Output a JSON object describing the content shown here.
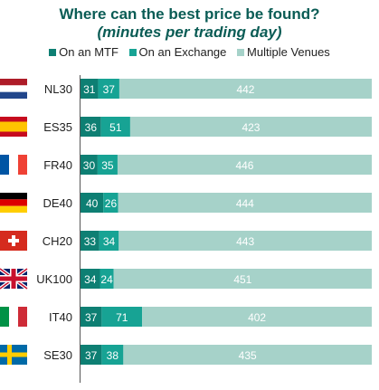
{
  "chart_data": {
    "type": "bar",
    "stacked": true,
    "orientation": "horizontal",
    "title": "Where can the best price be found?",
    "subtitle": "(minutes per trading day)",
    "legend_position": "top",
    "categories": [
      "NL30",
      "ES35",
      "FR40",
      "DE40",
      "CH20",
      "UK100",
      "IT40",
      "SE30"
    ],
    "flags": [
      "netherlands-flag",
      "spain-flag",
      "france-flag",
      "germany-flag",
      "switzerland-flag",
      "uk-flag",
      "italy-flag",
      "sweden-flag"
    ],
    "series": [
      {
        "name": "On an MTF",
        "color": "#0e7f73",
        "values": [
          31,
          36,
          30,
          40,
          33,
          34,
          37,
          37
        ]
      },
      {
        "name": "On an Exchange",
        "color": "#17a394",
        "values": [
          37,
          51,
          35,
          26,
          34,
          24,
          71,
          38
        ]
      },
      {
        "name": "Multiple Venues",
        "color": "#a6d2c9",
        "values": [
          442,
          423,
          446,
          444,
          443,
          451,
          402,
          435
        ]
      }
    ],
    "grid": false
  }
}
